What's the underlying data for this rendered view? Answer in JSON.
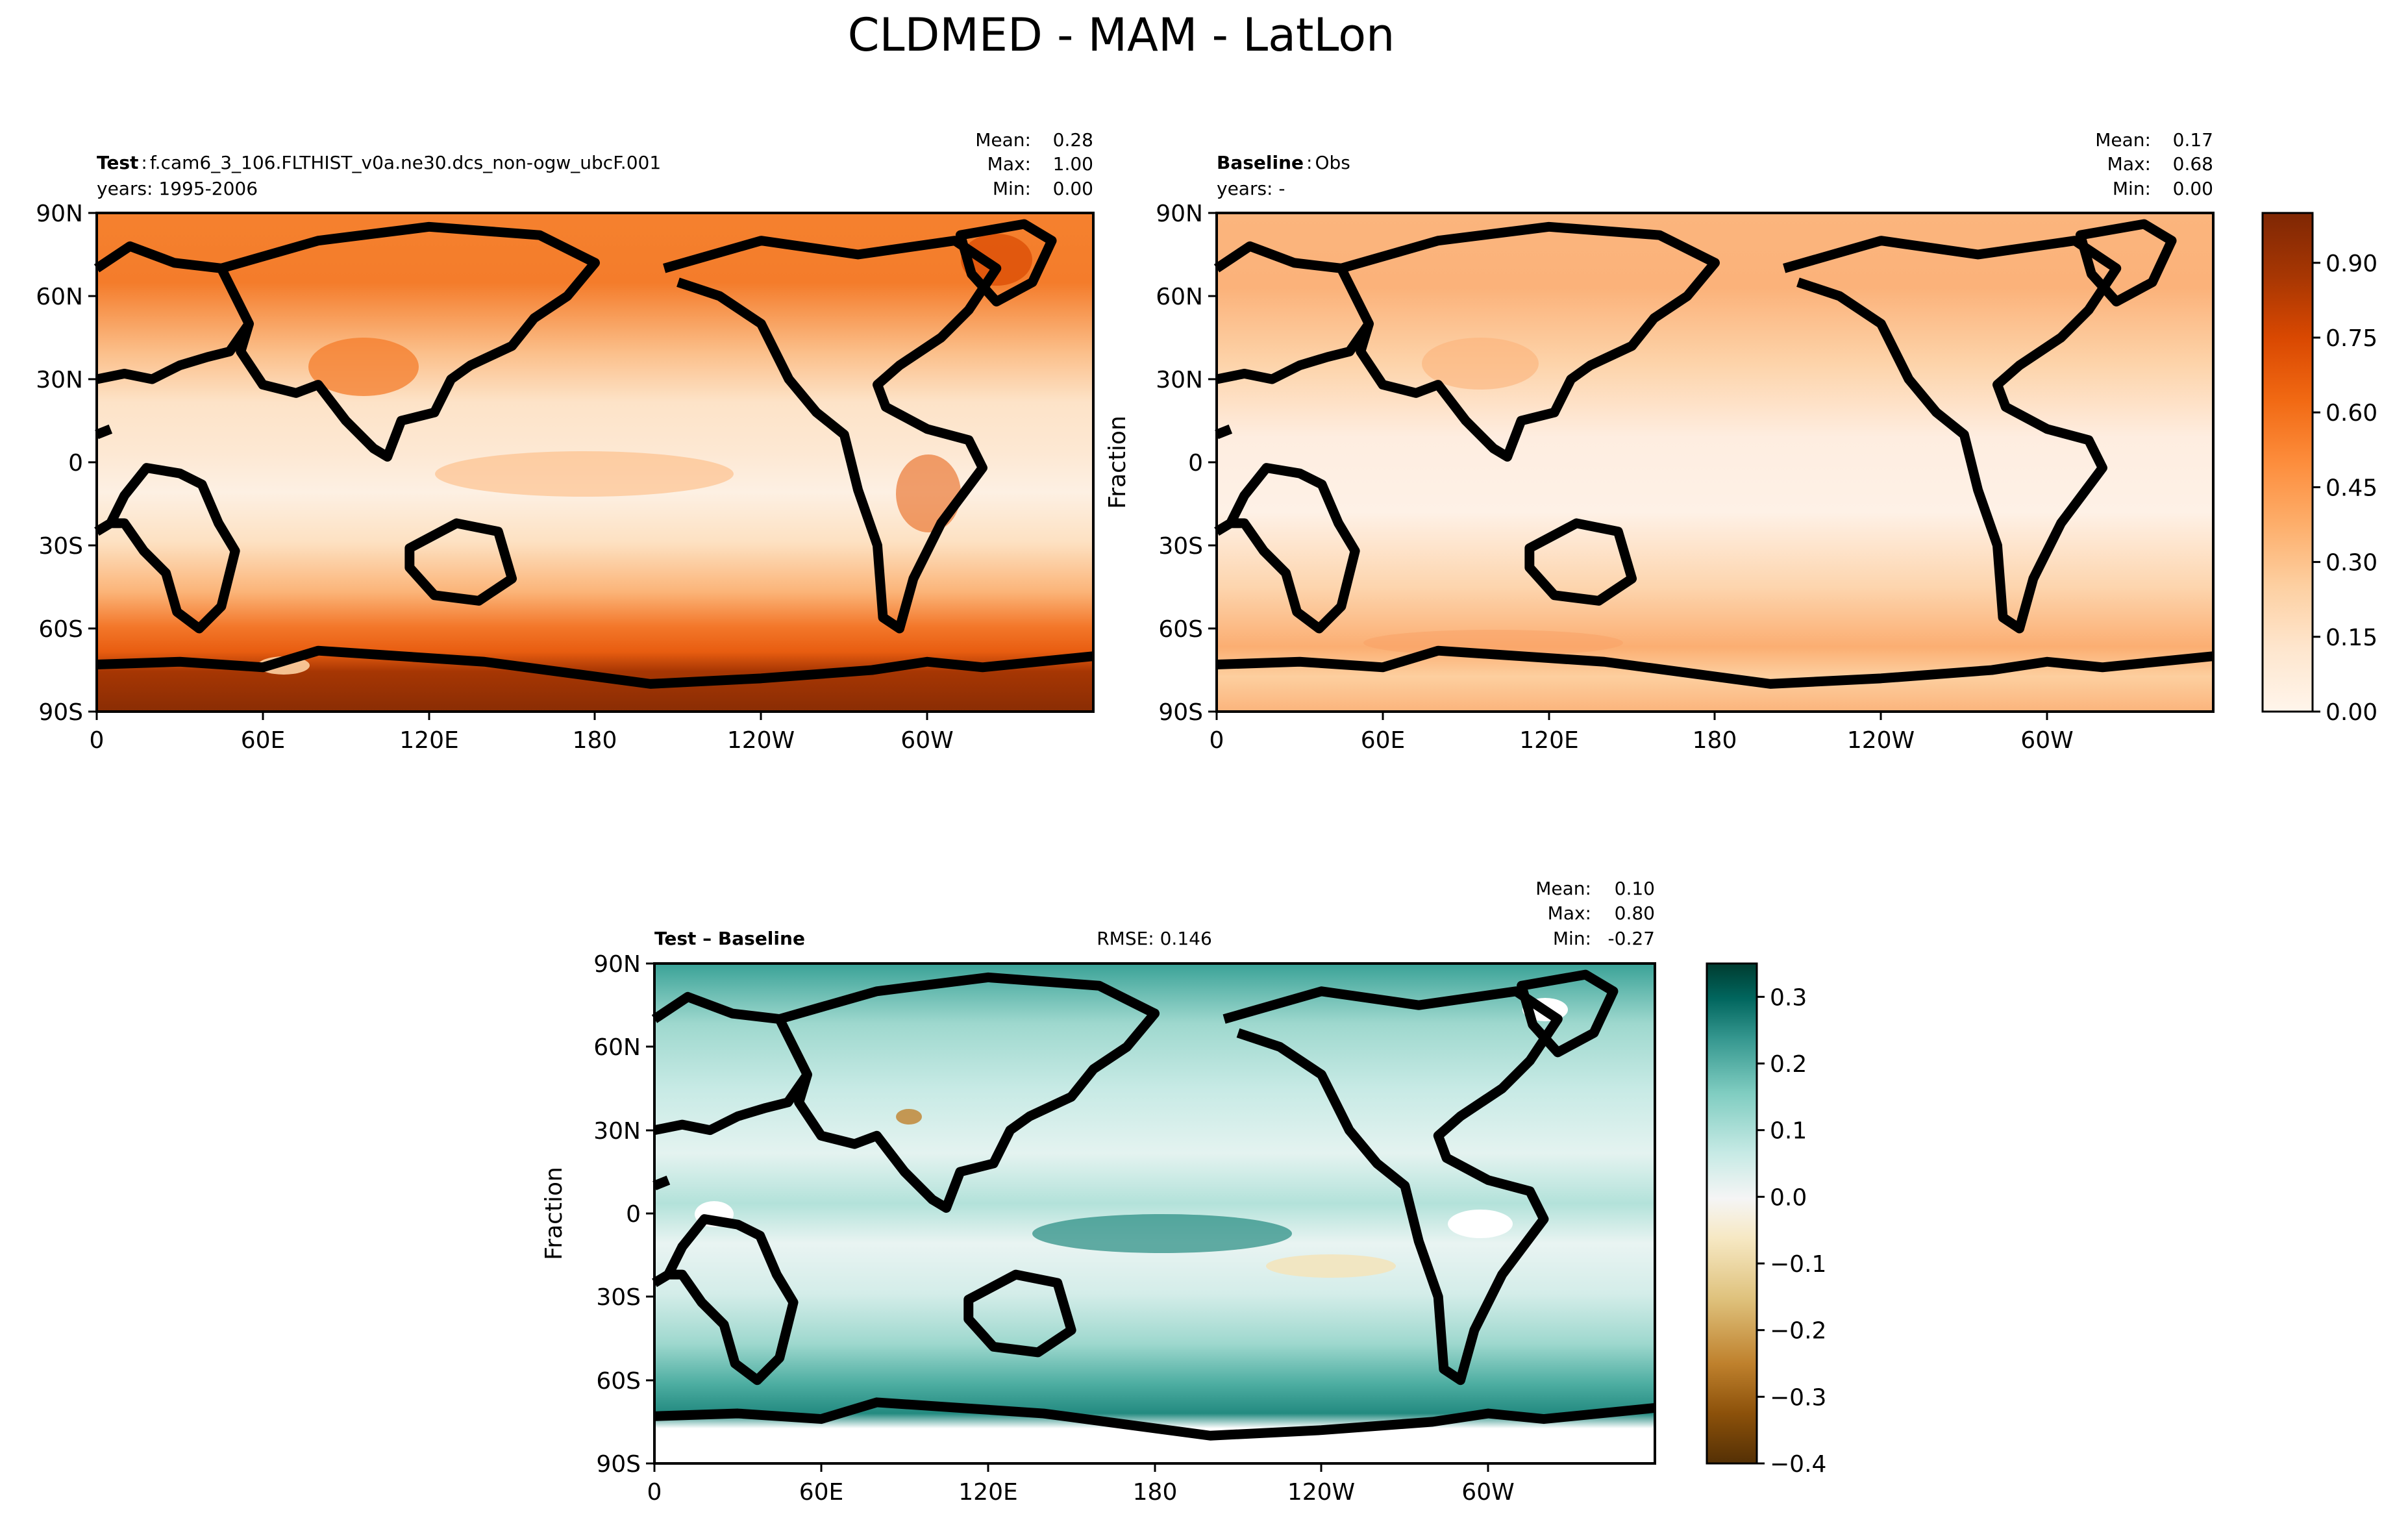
{
  "figure_title": "CLDMED - MAM - LatLon",
  "chart_data": [
    {
      "type": "heatmap",
      "panel": "test",
      "label_bold": "Test",
      "label_sep": ":",
      "label_value": "f.cam6_3_106.FLTHIST_v0a.ne30.dcs_non-ogw_ubcF.001",
      "years_text": "years: 1995-2006",
      "stats": {
        "mean_label": "Mean:",
        "mean": "0.28",
        "max_label": "Max:",
        "max": "1.00",
        "min_label": "Min:",
        "min": "0.00"
      },
      "xticks": [
        "0",
        "60E",
        "120E",
        "180",
        "120W",
        "60W"
      ],
      "yticks": [
        "90N",
        "60N",
        "30N",
        "0",
        "30S",
        "60S",
        "90S"
      ],
      "xlim": [
        0,
        360
      ],
      "ylim": [
        -90,
        90
      ],
      "ylabel": "",
      "zrange": [
        0.0,
        1.0
      ],
      "colormap": "Oranges"
    },
    {
      "type": "heatmap",
      "panel": "baseline",
      "label_bold": "Baseline",
      "label_sep": ":",
      "label_value": "Obs",
      "years_text": "years: -",
      "stats": {
        "mean_label": "Mean:",
        "mean": "0.17",
        "max_label": "Max:",
        "max": "0.68",
        "min_label": "Min:",
        "min": "0.00"
      },
      "xticks": [
        "0",
        "60E",
        "120E",
        "180",
        "120W",
        "60W"
      ],
      "yticks": [
        "90N",
        "60N",
        "30N",
        "0",
        "30S",
        "60S",
        "90S"
      ],
      "xlim": [
        0,
        360
      ],
      "ylim": [
        -90,
        90
      ],
      "ylabel": "Fraction",
      "zrange": [
        0.0,
        0.68
      ],
      "colormap": "Oranges",
      "colorbar": {
        "ticks": [
          "0.00",
          "0.15",
          "0.30",
          "0.45",
          "0.60",
          "0.75",
          "0.90"
        ],
        "tick_values": [
          0.0,
          0.15,
          0.3,
          0.45,
          0.6,
          0.75,
          0.9
        ],
        "range": [
          0.0,
          1.0
        ]
      }
    },
    {
      "type": "heatmap",
      "panel": "difference",
      "label_bold": "Test – Baseline",
      "rmse_text": "RMSE: 0.146",
      "stats": {
        "mean_label": "Mean:",
        "mean": "0.10",
        "max_label": "Max:",
        "max": "0.80",
        "min_label": "Min:",
        "min": "-0.27"
      },
      "xticks": [
        "0",
        "60E",
        "120E",
        "180",
        "120W",
        "60W"
      ],
      "yticks": [
        "90N",
        "60N",
        "30N",
        "0",
        "30S",
        "60S",
        "90S"
      ],
      "xlim": [
        0,
        360
      ],
      "ylim": [
        -90,
        90
      ],
      "ylabel": "Fraction",
      "zrange": [
        -0.27,
        0.8
      ],
      "colormap": "BrBG",
      "colorbar": {
        "ticks": [
          "0.3",
          "0.2",
          "0.1",
          "0.0",
          "−0.1",
          "−0.2",
          "−0.3",
          "−0.4"
        ],
        "tick_values": [
          0.3,
          0.2,
          0.1,
          0.0,
          -0.1,
          -0.2,
          -0.3,
          -0.4
        ],
        "range": [
          -0.4,
          0.35
        ]
      }
    }
  ],
  "colors": {
    "oranges": [
      "#fff5eb",
      "#fee6ce",
      "#fdd0a2",
      "#fdae6b",
      "#fd8d3c",
      "#f16913",
      "#d94801",
      "#a63603",
      "#7f2704"
    ],
    "brbg": [
      "#543005",
      "#8c510a",
      "#bf812d",
      "#dfc27d",
      "#f6e8c3",
      "#f5f5f5",
      "#c7eae5",
      "#80cdc1",
      "#35978f",
      "#01665e",
      "#003c30"
    ],
    "coast": "#000000"
  }
}
